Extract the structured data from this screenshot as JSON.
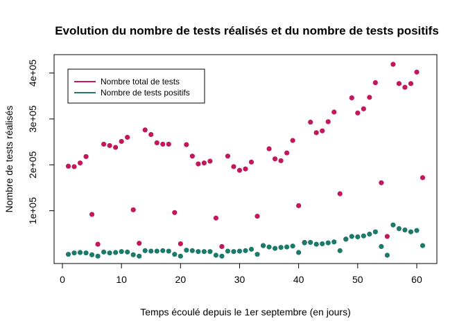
{
  "chart_data": {
    "type": "scatter",
    "title": "Evolution du nombre de tests réalisés et du nombre de tests positifs",
    "xlabel": "Temps écoulé depuis le 1er septembre (en jours)",
    "ylabel": "Nombre de tests réalisés",
    "xlim": [
      0,
      62
    ],
    "ylim": [
      0,
      425000
    ],
    "xticks": [
      0,
      10,
      20,
      30,
      40,
      50,
      60
    ],
    "xtick_labels": [
      "0",
      "10",
      "20",
      "30",
      "40",
      "50",
      "60"
    ],
    "yticks": [
      100000,
      200000,
      300000,
      400000
    ],
    "ytick_labels": [
      "1e+05",
      "2e+05",
      "3e+05",
      "4e+05"
    ],
    "grid": false,
    "legend_position": "top-left",
    "series": [
      {
        "name": "Nombre total de tests",
        "color": "#C2185B",
        "points": [
          [
            1,
            197000
          ],
          [
            2,
            196000
          ],
          [
            3,
            204000
          ],
          [
            4,
            218000
          ],
          [
            5,
            92000
          ],
          [
            6,
            27000
          ],
          [
            7,
            245000
          ],
          [
            8,
            242000
          ],
          [
            9,
            238000
          ],
          [
            10,
            251000
          ],
          [
            11,
            260000
          ],
          [
            12,
            102000
          ],
          [
            13,
            29000
          ],
          [
            14,
            276000
          ],
          [
            15,
            266000
          ],
          [
            16,
            248000
          ],
          [
            17,
            245000
          ],
          [
            18,
            245000
          ],
          [
            19,
            96000
          ],
          [
            20,
            28000
          ],
          [
            21,
            244000
          ],
          [
            22,
            219000
          ],
          [
            23,
            202000
          ],
          [
            24,
            204000
          ],
          [
            25,
            208000
          ],
          [
            26,
            84000
          ],
          [
            27,
            22000
          ],
          [
            28,
            219000
          ],
          [
            29,
            196000
          ],
          [
            30,
            188000
          ],
          [
            31,
            191000
          ],
          [
            32,
            206000
          ],
          [
            33,
            88000
          ],
          [
            34,
            24000
          ],
          [
            35,
            235000
          ],
          [
            36,
            213000
          ],
          [
            37,
            209000
          ],
          [
            38,
            226000
          ],
          [
            39,
            253000
          ],
          [
            40,
            111000
          ],
          [
            41,
            31000
          ],
          [
            42,
            293000
          ],
          [
            43,
            270000
          ],
          [
            44,
            274000
          ],
          [
            45,
            294000
          ],
          [
            46,
            315000
          ],
          [
            47,
            137000
          ],
          [
            48,
            38000
          ],
          [
            49,
            346000
          ],
          [
            50,
            313000
          ],
          [
            51,
            322000
          ],
          [
            52,
            347000
          ],
          [
            53,
            379000
          ],
          [
            54,
            161000
          ],
          [
            55,
            44000
          ],
          [
            56,
            419000
          ],
          [
            57,
            377000
          ],
          [
            58,
            369000
          ],
          [
            59,
            377000
          ],
          [
            60,
            402000
          ],
          [
            61,
            172000
          ]
        ]
      },
      {
        "name": "Nombre de tests positifs",
        "color": "#1B7A6A",
        "points": [
          [
            1,
            5000
          ],
          [
            2,
            8000
          ],
          [
            3,
            9000
          ],
          [
            4,
            8000
          ],
          [
            5,
            4000
          ],
          [
            6,
            1000
          ],
          [
            7,
            10000
          ],
          [
            8,
            8000
          ],
          [
            9,
            9000
          ],
          [
            10,
            11000
          ],
          [
            11,
            10000
          ],
          [
            12,
            4000
          ],
          [
            13,
            1000
          ],
          [
            14,
            13000
          ],
          [
            15,
            12000
          ],
          [
            16,
            12000
          ],
          [
            17,
            13000
          ],
          [
            18,
            12000
          ],
          [
            19,
            5000
          ],
          [
            20,
            1000
          ],
          [
            21,
            14000
          ],
          [
            22,
            13000
          ],
          [
            23,
            11000
          ],
          [
            24,
            11000
          ],
          [
            25,
            11000
          ],
          [
            26,
            3000
          ],
          [
            27,
            1000
          ],
          [
            28,
            12000
          ],
          [
            29,
            11000
          ],
          [
            30,
            12000
          ],
          [
            31,
            13000
          ],
          [
            32,
            16000
          ],
          [
            33,
            5000
          ],
          [
            34,
            24000
          ],
          [
            35,
            21000
          ],
          [
            36,
            18000
          ],
          [
            37,
            20000
          ],
          [
            38,
            21000
          ],
          [
            39,
            23000
          ],
          [
            40,
            9000
          ],
          [
            41,
            30000
          ],
          [
            42,
            31000
          ],
          [
            43,
            27000
          ],
          [
            44,
            28000
          ],
          [
            45,
            30000
          ],
          [
            46,
            32000
          ],
          [
            47,
            13000
          ],
          [
            48,
            38000
          ],
          [
            49,
            44000
          ],
          [
            50,
            43000
          ],
          [
            51,
            45000
          ],
          [
            52,
            49000
          ],
          [
            53,
            54000
          ],
          [
            54,
            22000
          ],
          [
            55,
            3000
          ],
          [
            56,
            69000
          ],
          [
            57,
            61000
          ],
          [
            58,
            58000
          ],
          [
            59,
            54000
          ],
          [
            60,
            57000
          ],
          [
            61,
            24000
          ]
        ]
      }
    ]
  },
  "colors": {
    "total": "#C2185B",
    "positifs": "#1B7A6A"
  }
}
